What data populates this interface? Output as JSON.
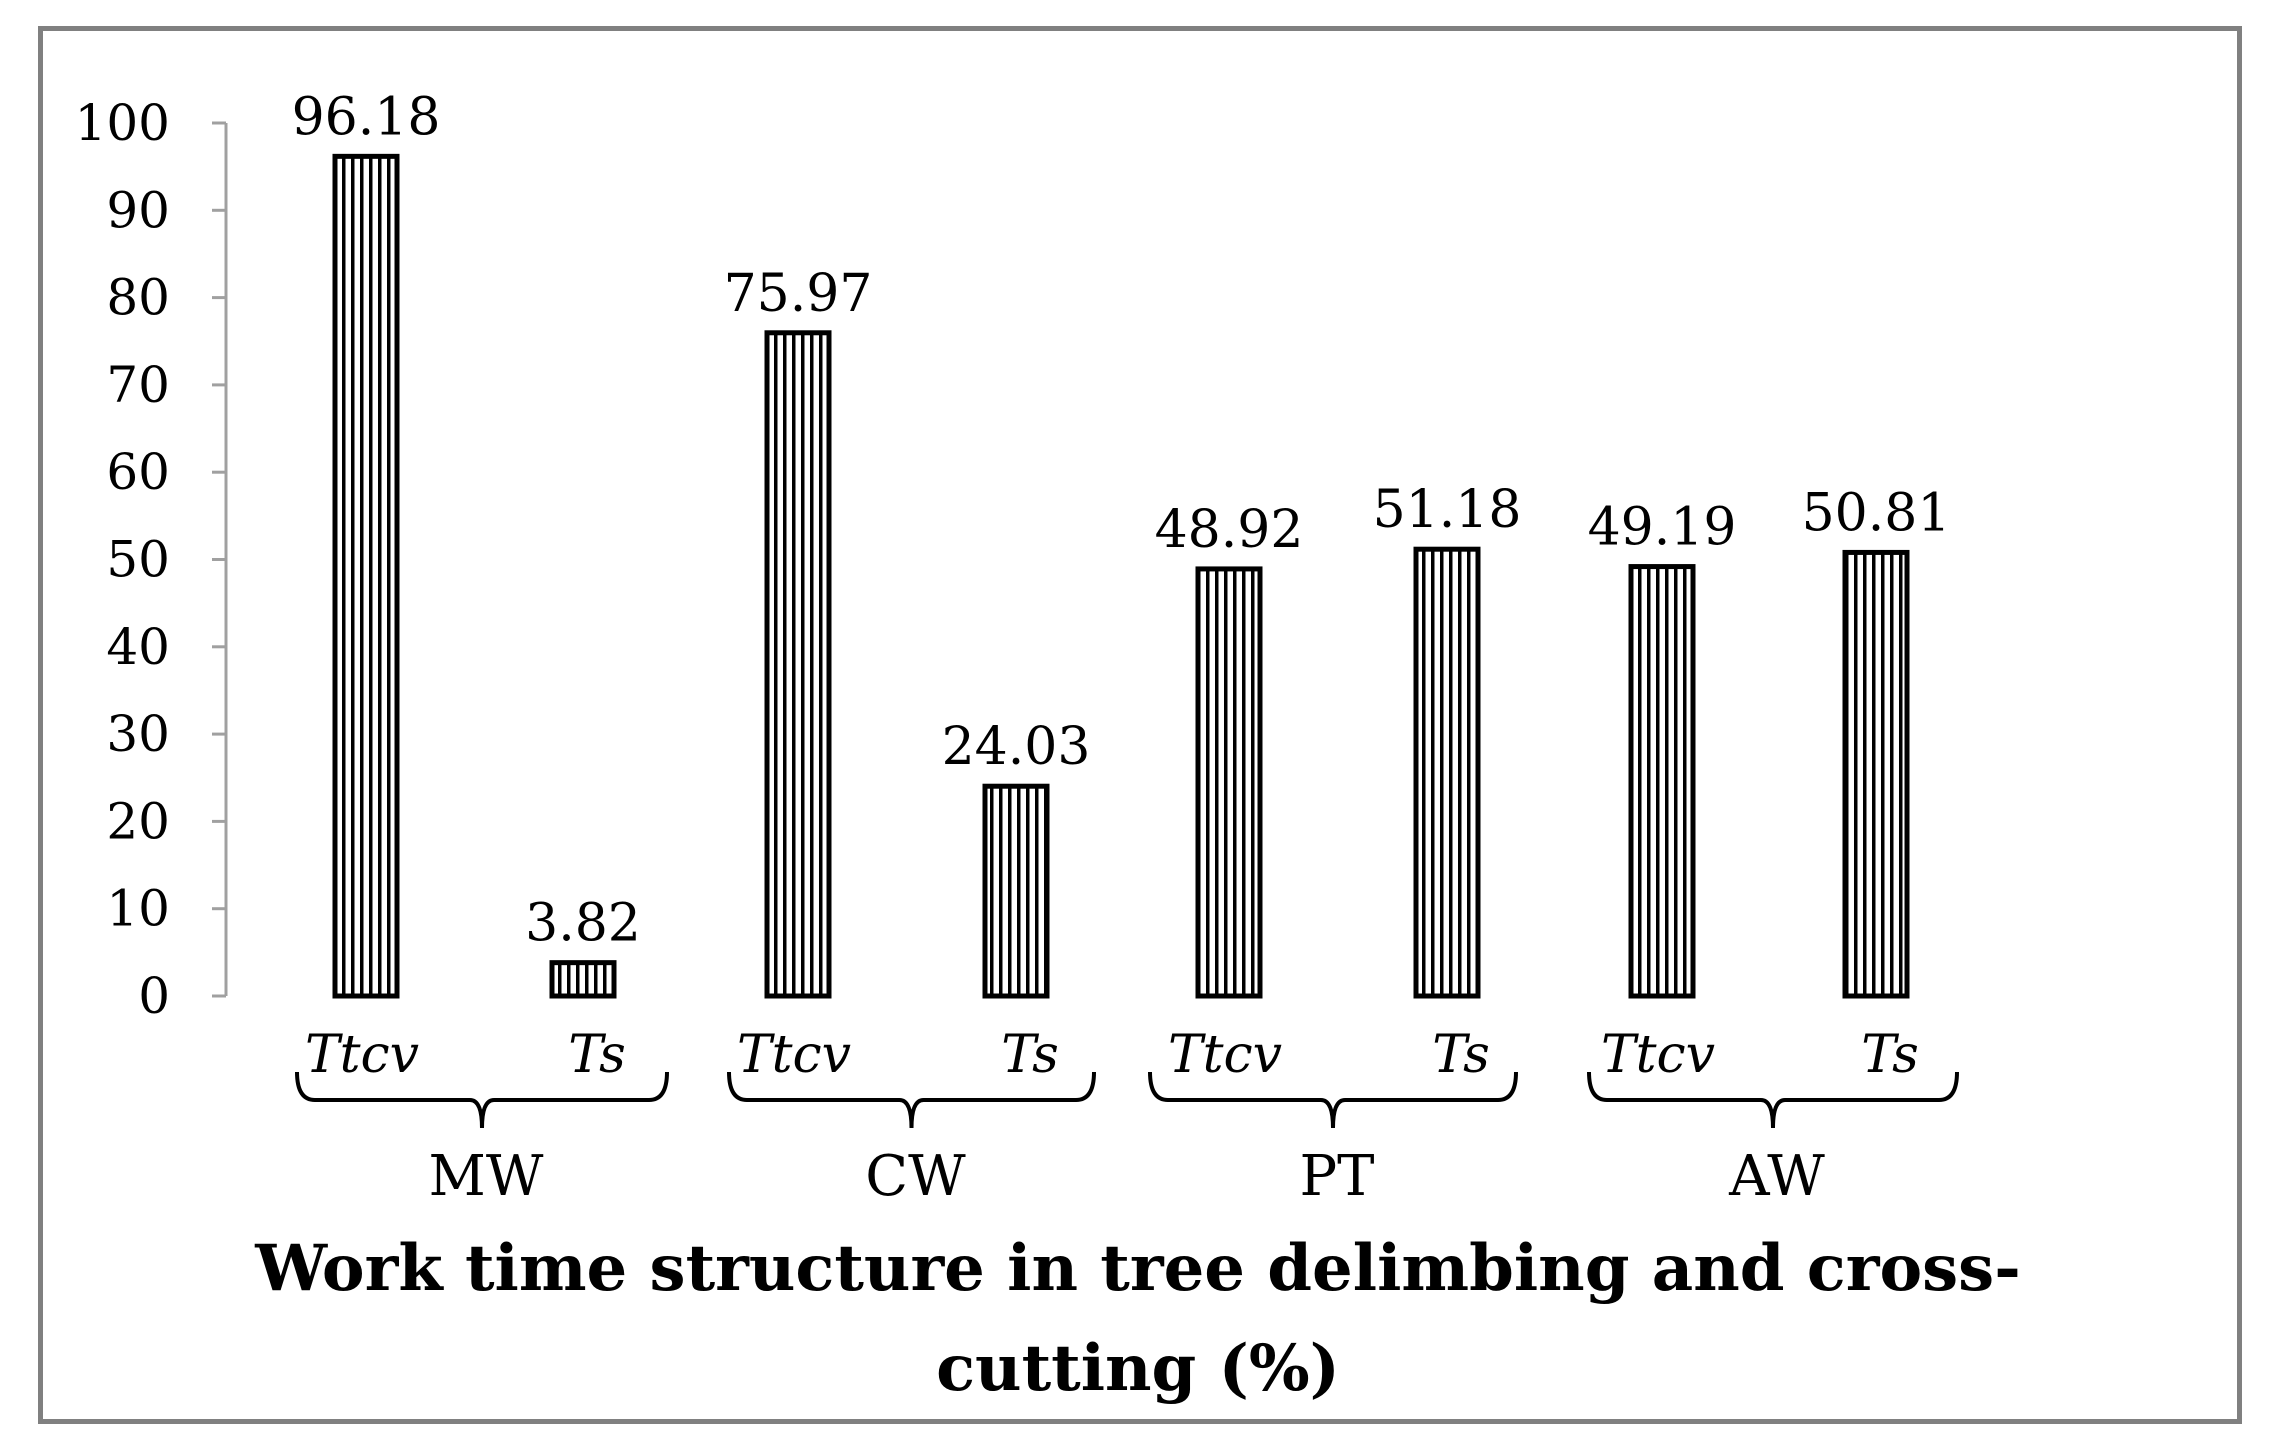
{
  "chart_data": {
    "type": "bar",
    "title_lines": [
      "Work time structure in tree delimbing and cross-",
      "cutting (%)"
    ],
    "xlabel": "",
    "ylabel": "",
    "ylim": [
      0,
      100
    ],
    "yticks": [
      "0",
      "10",
      "20",
      "30",
      "40",
      "50",
      "60",
      "70",
      "80",
      "90",
      "100"
    ],
    "groups": [
      "MW",
      "CW",
      "PT",
      "AW"
    ],
    "bar_labels": [
      "Ttcv",
      "Ts"
    ],
    "bars": [
      {
        "group": "MW",
        "label": "Ttcv",
        "value": 96.18,
        "value_label": "96.18"
      },
      {
        "group": "MW",
        "label": "Ts",
        "value": 3.82,
        "value_label": "3.82"
      },
      {
        "group": "CW",
        "label": "Ttcv",
        "value": 75.97,
        "value_label": "75.97"
      },
      {
        "group": "CW",
        "label": "Ts",
        "value": 24.03,
        "value_label": "24.03"
      },
      {
        "group": "PT",
        "label": "Ttcv",
        "value": 48.92,
        "value_label": "48.92"
      },
      {
        "group": "PT",
        "label": "Ts",
        "value": 51.18,
        "value_label": "51.18"
      },
      {
        "group": "AW",
        "label": "Ttcv",
        "value": 49.19,
        "value_label": "49.19"
      },
      {
        "group": "AW",
        "label": "Ts",
        "value": 50.81,
        "value_label": "50.81"
      }
    ],
    "pattern": "vertical-stripes",
    "bar_color": "#000000",
    "background": "#ffffff",
    "grid": false,
    "legend": "none"
  }
}
